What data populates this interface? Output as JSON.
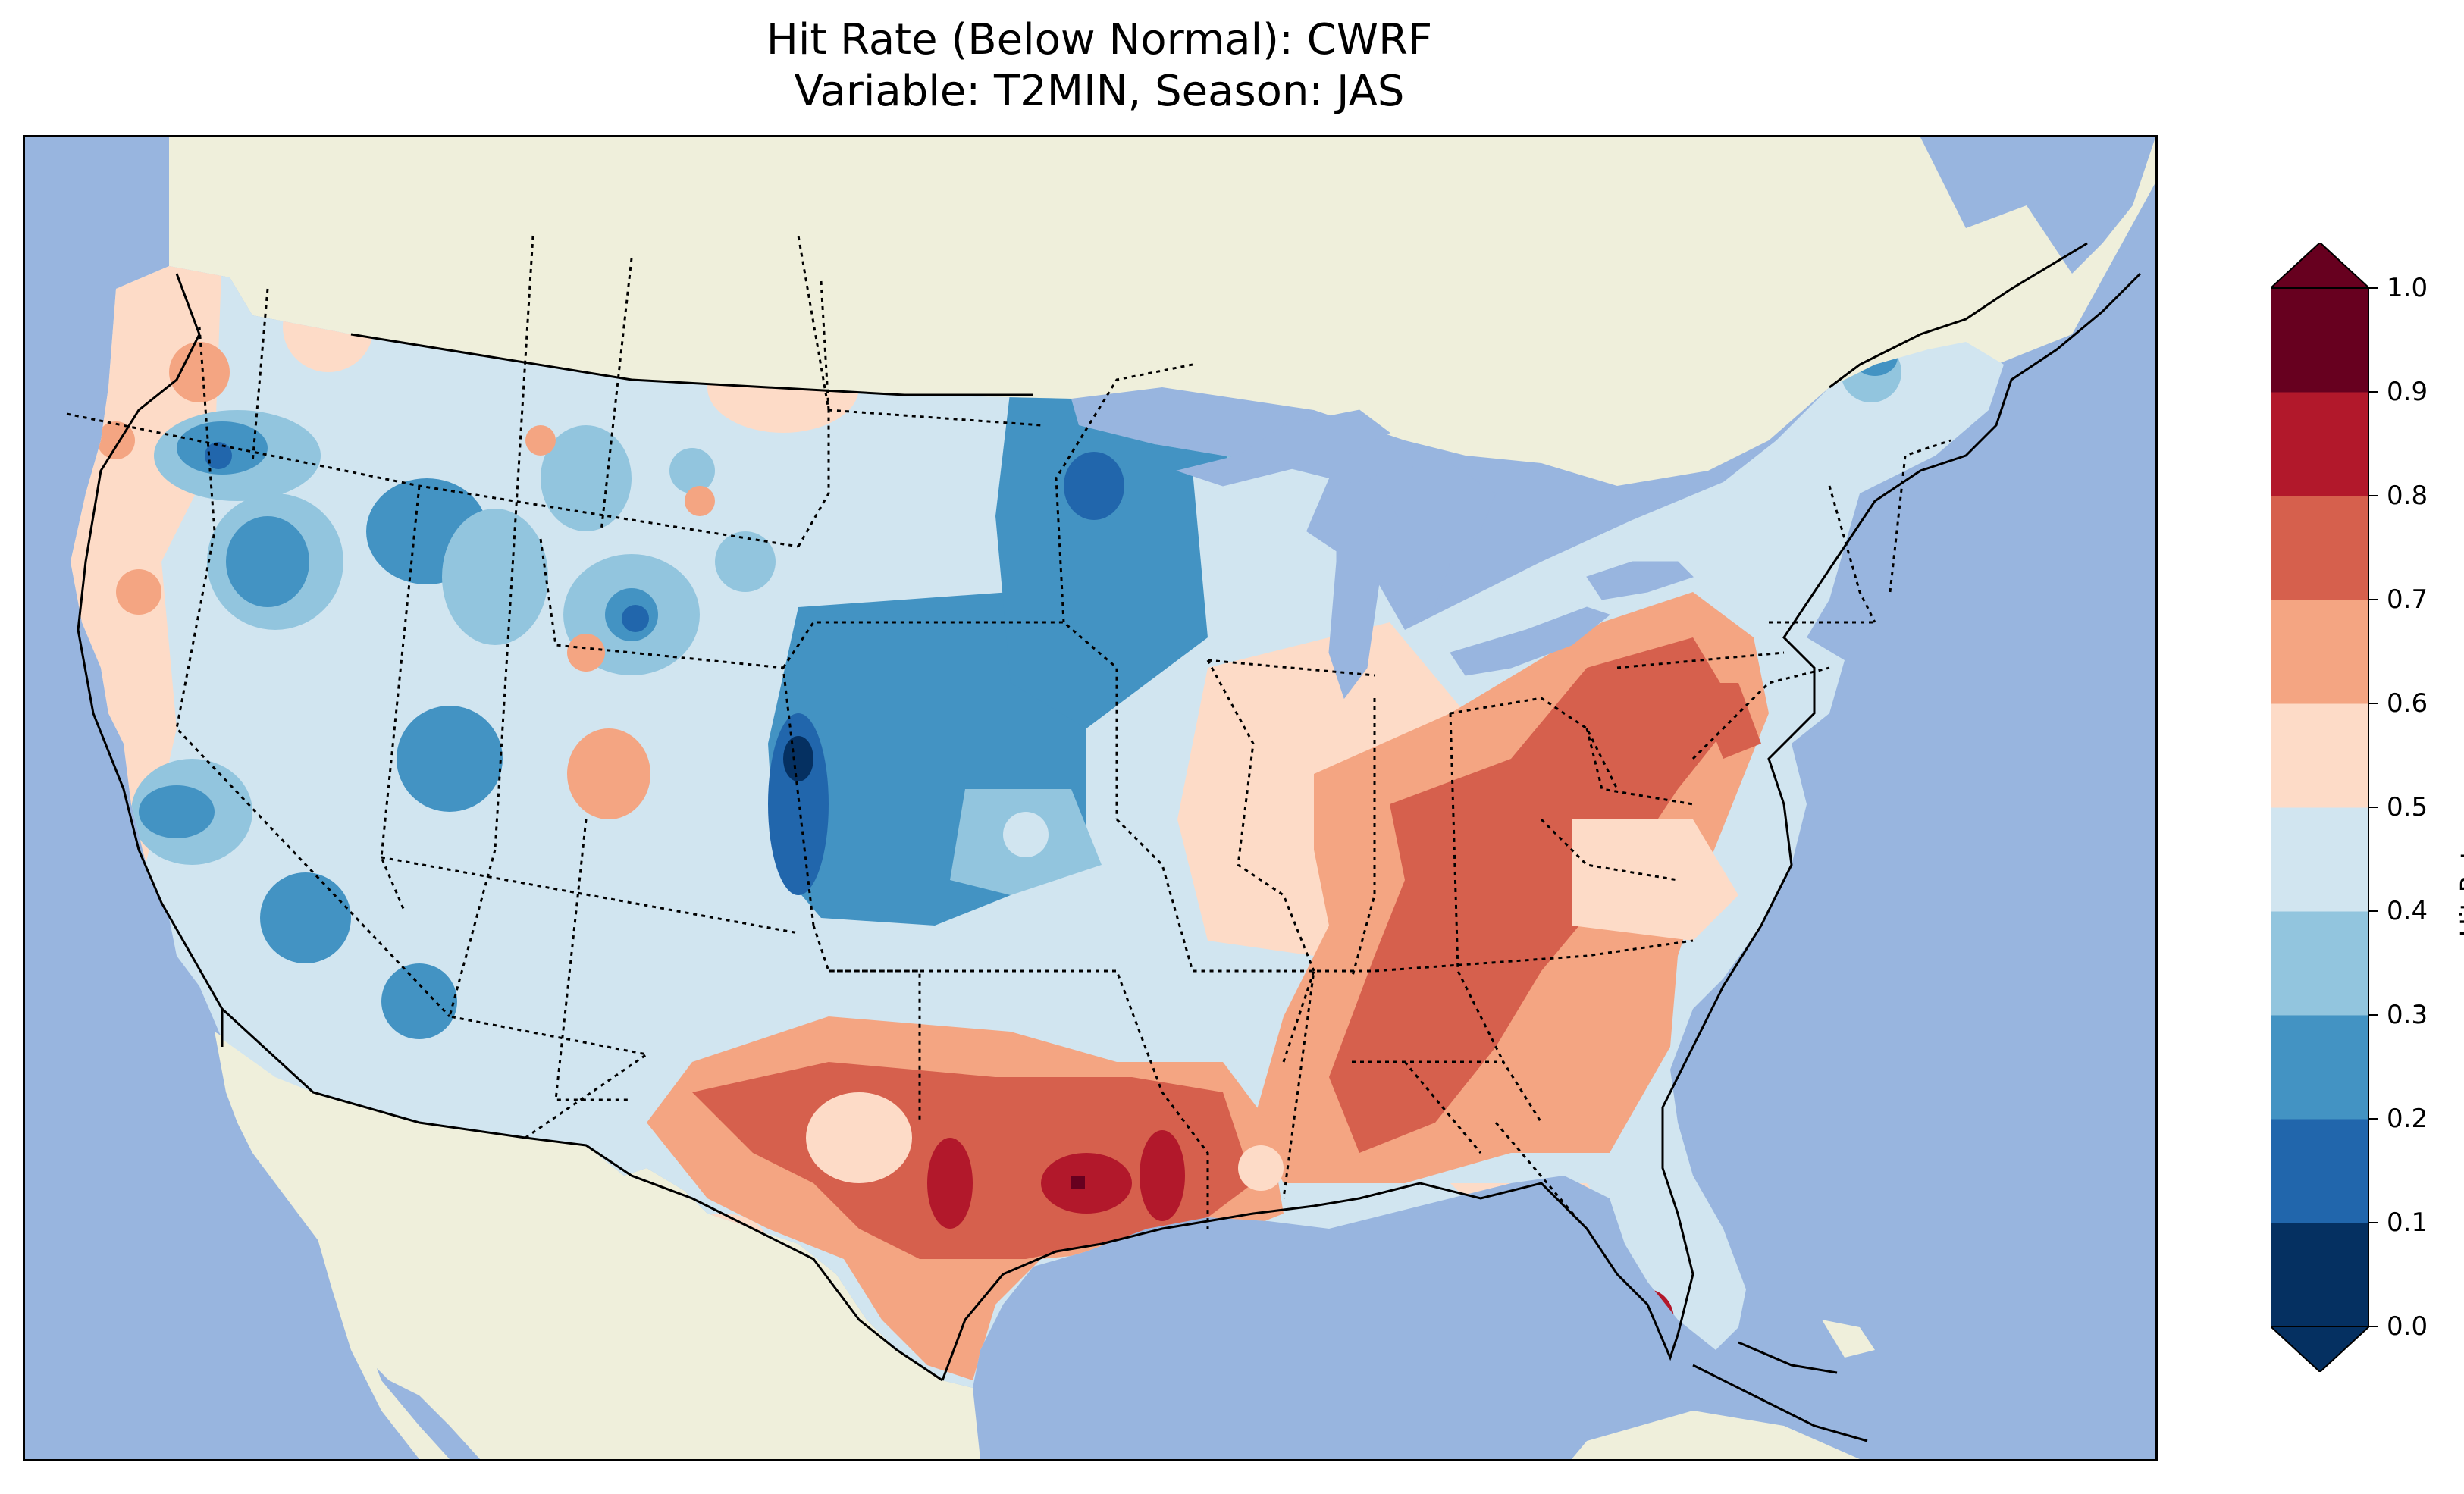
{
  "title": {
    "line1": "Hit Rate (Below Normal): CWRF",
    "line2": "Variable: T2MIN, Season: JAS"
  },
  "colorbar": {
    "label": "Hit Rate",
    "ticks": [
      "0.0",
      "0.1",
      "0.2",
      "0.3",
      "0.4",
      "0.5",
      "0.6",
      "0.7",
      "0.8",
      "0.9",
      "1.0"
    ],
    "bins": [
      {
        "range": "0.0-0.1",
        "color": "#053061"
      },
      {
        "range": "0.1-0.2",
        "color": "#2166ac"
      },
      {
        "range": "0.2-0.3",
        "color": "#4393c3"
      },
      {
        "range": "0.3-0.4",
        "color": "#92c5de"
      },
      {
        "range": "0.4-0.5",
        "color": "#d1e5f0"
      },
      {
        "range": "0.5-0.6",
        "color": "#fddbc7"
      },
      {
        "range": "0.6-0.7",
        "color": "#f4a582"
      },
      {
        "range": "0.7-0.8",
        "color": "#d6604d"
      },
      {
        "range": "0.8-0.9",
        "color": "#b2182b"
      },
      {
        "range": "0.9-1.0",
        "color": "#67001f"
      }
    ],
    "under_color": "#053061",
    "over_color": "#67001f"
  },
  "map_colors": {
    "ocean": "#98b5df",
    "land": "#efefdb",
    "lakes": "#98b5df"
  },
  "regions": [
    {
      "name": "northwest-coast",
      "bin": "0.5-0.6"
    },
    {
      "name": "interior-west",
      "bin": "0.4-0.5"
    },
    {
      "name": "central-plains",
      "bin": "0.2-0.3"
    },
    {
      "name": "upper-midwest",
      "bin": "0.2-0.3"
    },
    {
      "name": "ohio-valley",
      "bin": "0.5-0.6"
    },
    {
      "name": "southeast",
      "bin": "0.7-0.8"
    },
    {
      "name": "texas-louisiana",
      "bin": "0.7-0.8"
    },
    {
      "name": "new-england",
      "bin": "0.4-0.5"
    },
    {
      "name": "southwest",
      "bin": "0.4-0.5"
    }
  ]
}
